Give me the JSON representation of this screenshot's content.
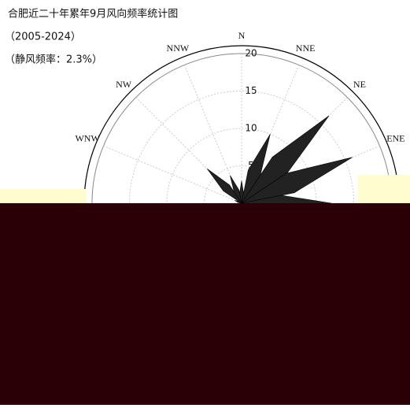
{
  "chart_data": {
    "type": "windrose",
    "title": "合肥近二十年累年9月风向频率统计图",
    "subtitle": "（2005-2024）",
    "annotation": "（静风频率：2.3%）",
    "categories": [
      "N",
      "NNE",
      "NE",
      "ENE",
      null,
      null,
      null,
      null,
      null,
      null,
      null,
      null,
      null,
      "WNW",
      "NW",
      "NNW"
    ],
    "values": [
      3,
      10,
      16.5,
      16,
      12,
      null,
      null,
      null,
      null,
      null,
      null,
      null,
      null,
      1,
      6.5,
      4
    ],
    "color": "#222222",
    "ylim": [
      0,
      20
    ],
    "yticks": [
      5,
      10,
      15,
      20
    ],
    "grid": true
  }
}
